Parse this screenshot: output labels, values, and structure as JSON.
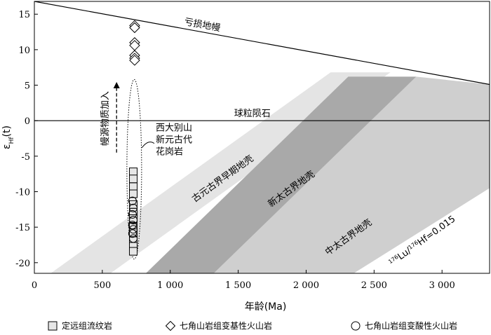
{
  "chart_data": {
    "type": "scatter",
    "xlabel": "年龄(Ma)",
    "ylabel_main": "ε",
    "ylabel_sub": "Hf",
    "ylabel_tail": "(t)",
    "xlim": [
      0,
      3350
    ],
    "ylim": [
      -21.5,
      16.8
    ],
    "x_ticks": [
      0,
      500,
      1000,
      1500,
      2000,
      2500,
      3000
    ],
    "x_tick_labels": [
      "0",
      "500",
      "1 000",
      "1 500",
      "2 000",
      "2 500",
      "3 000"
    ],
    "y_ticks": [
      -20,
      -15,
      -10,
      -5,
      0,
      5,
      10,
      15
    ],
    "y_tick_labels": [
      "-20",
      "-15",
      "-10",
      "-5",
      "0",
      "5",
      "10",
      "15"
    ],
    "colors": {
      "band_paleo": "#e4e4e4",
      "band_neo": "#a9a9a9",
      "band_meso": "#cfcfcf",
      "square_fill": "#e6e6e6"
    },
    "reference_lines": [
      {
        "name": "亏损地幔",
        "points": [
          [
            0,
            16.8
          ],
          [
            3350,
            5.1
          ]
        ]
      },
      {
        "name": "球粒陨石",
        "points": [
          [
            0,
            0
          ],
          [
            3350,
            0
          ]
        ]
      }
    ],
    "crustal_bands": [
      {
        "label": "古元古界早期地壳",
        "polygon": [
          [
            120,
            -21.5
          ],
          [
            560,
            -21.5
          ],
          [
            2620,
            6.8
          ],
          [
            2180,
            6.8
          ]
        ]
      },
      {
        "label": "新太古界地壳",
        "polygon": [
          [
            820,
            -21.5
          ],
          [
            1320,
            -21.5
          ],
          [
            2810,
            6.2
          ],
          [
            2310,
            6.2
          ]
        ]
      },
      {
        "label": "中太古界地壳",
        "polygon": [
          [
            1320,
            -21.5
          ],
          [
            2350,
            -21.5
          ],
          [
            3350,
            -9.5
          ],
          [
            3350,
            5.1
          ],
          [
            2810,
            6.2
          ]
        ]
      }
    ],
    "slope_label": "Lu/Hf=0.015",
    "slope_label_sup1": "176",
    "slope_label_sup2": "176",
    "arrow_label": "幔源物质加入",
    "ellipse_label_lines": [
      "西大别山",
      "新元古代",
      "花岗岩"
    ],
    "series": [
      {
        "name": "定远组流纹岩",
        "marker": "square",
        "points": [
          [
            728,
            -7.2
          ],
          [
            728,
            -8.2
          ],
          [
            728,
            -9.3
          ],
          [
            728,
            -10.3
          ],
          [
            728,
            -11.8
          ],
          [
            728,
            -12.9
          ],
          [
            728,
            -13.8
          ],
          [
            728,
            -15.0
          ],
          [
            728,
            -15.8
          ],
          [
            728,
            -16.9
          ],
          [
            728,
            -17.7
          ],
          [
            728,
            -18.4
          ]
        ]
      },
      {
        "name": "七角山岩组变基性火山岩",
        "marker": "diamond",
        "points": [
          [
            738,
            13.4
          ],
          [
            738,
            13.1
          ],
          [
            738,
            11.0
          ],
          [
            738,
            10.6
          ],
          [
            738,
            9.2
          ],
          [
            738,
            8.8
          ],
          [
            738,
            8.5
          ]
        ]
      },
      {
        "name": "七角山岩组变酸性火山岩",
        "marker": "circle",
        "points": [
          [
            722,
            -11.3
          ],
          [
            728,
            -12.3
          ],
          [
            722,
            -13.2
          ],
          [
            728,
            -14.0
          ],
          [
            722,
            -14.7
          ],
          [
            728,
            -15.3
          ],
          [
            722,
            -15.9
          ],
          [
            728,
            -16.6
          ]
        ]
      }
    ]
  }
}
